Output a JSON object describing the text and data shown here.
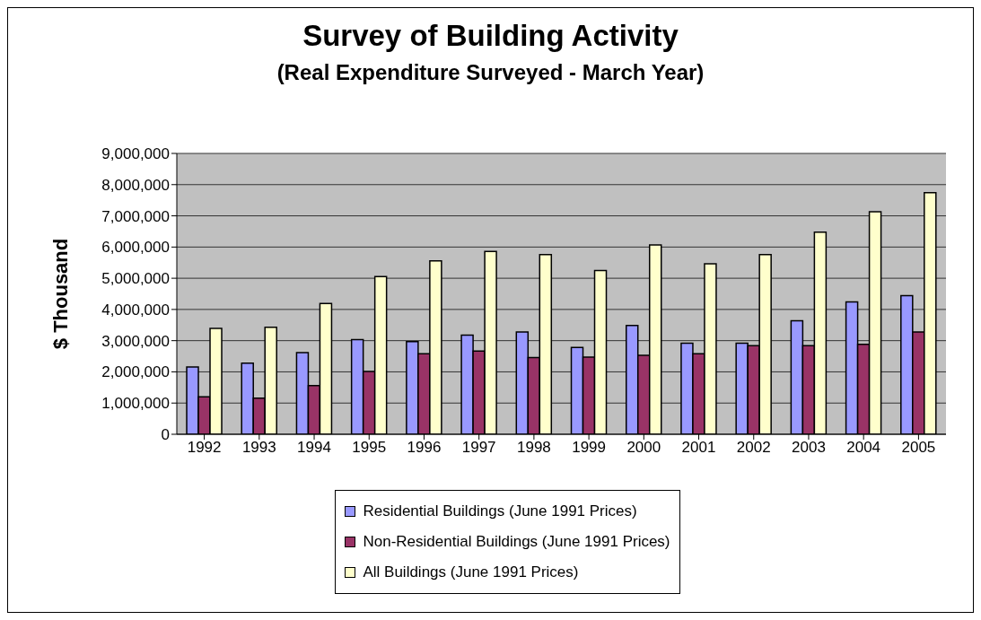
{
  "chart_data": {
    "type": "bar",
    "title": "Survey of Building Activity",
    "subtitle": "(Real Expenditure Surveyed - March Year)",
    "ylabel": "$ Thousand",
    "categories": [
      "1992",
      "1993",
      "1994",
      "1995",
      "1996",
      "1997",
      "1998",
      "1999",
      "2000",
      "2001",
      "2002",
      "2003",
      "2004",
      "2005"
    ],
    "series": [
      {
        "name": "Residential Buildings (June 1991 Prices)",
        "color": "#9999ff",
        "values": [
          2160000,
          2280000,
          2620000,
          3030000,
          2970000,
          3180000,
          3280000,
          2780000,
          3490000,
          2920000,
          2920000,
          3640000,
          4240000,
          4440000
        ]
      },
      {
        "name": "Non-Residential Buildings (June 1991 Prices)",
        "color": "#993366",
        "values": [
          1200000,
          1160000,
          1560000,
          2010000,
          2580000,
          2670000,
          2460000,
          2470000,
          2530000,
          2580000,
          2840000,
          2840000,
          2880000,
          3280000
        ]
      },
      {
        "name": "All Buildings (June 1991 Prices)",
        "color": "#ffffcc",
        "values": [
          3390000,
          3430000,
          4190000,
          5050000,
          5560000,
          5860000,
          5760000,
          5250000,
          6070000,
          5460000,
          5760000,
          6480000,
          7130000,
          7740000
        ]
      }
    ],
    "ylim": [
      0,
      9000000
    ],
    "yticks": [
      0,
      {
        "value": 1000000,
        "label": "1,000,000"
      },
      {
        "value": 2000000,
        "label": "2,000,000"
      },
      {
        "value": 3000000,
        "label": "3,000,000"
      },
      {
        "value": 4000000,
        "label": "4,000,000"
      },
      {
        "value": 5000000,
        "label": "5,000,000"
      },
      {
        "value": 6000000,
        "label": "6,000,000"
      },
      {
        "value": 7000000,
        "label": "7,000,000"
      },
      {
        "value": 8000000,
        "label": "8,000,000"
      },
      {
        "value": 9000000,
        "label": "9,000,000"
      }
    ],
    "grid": "y",
    "legend": "bottom"
  }
}
